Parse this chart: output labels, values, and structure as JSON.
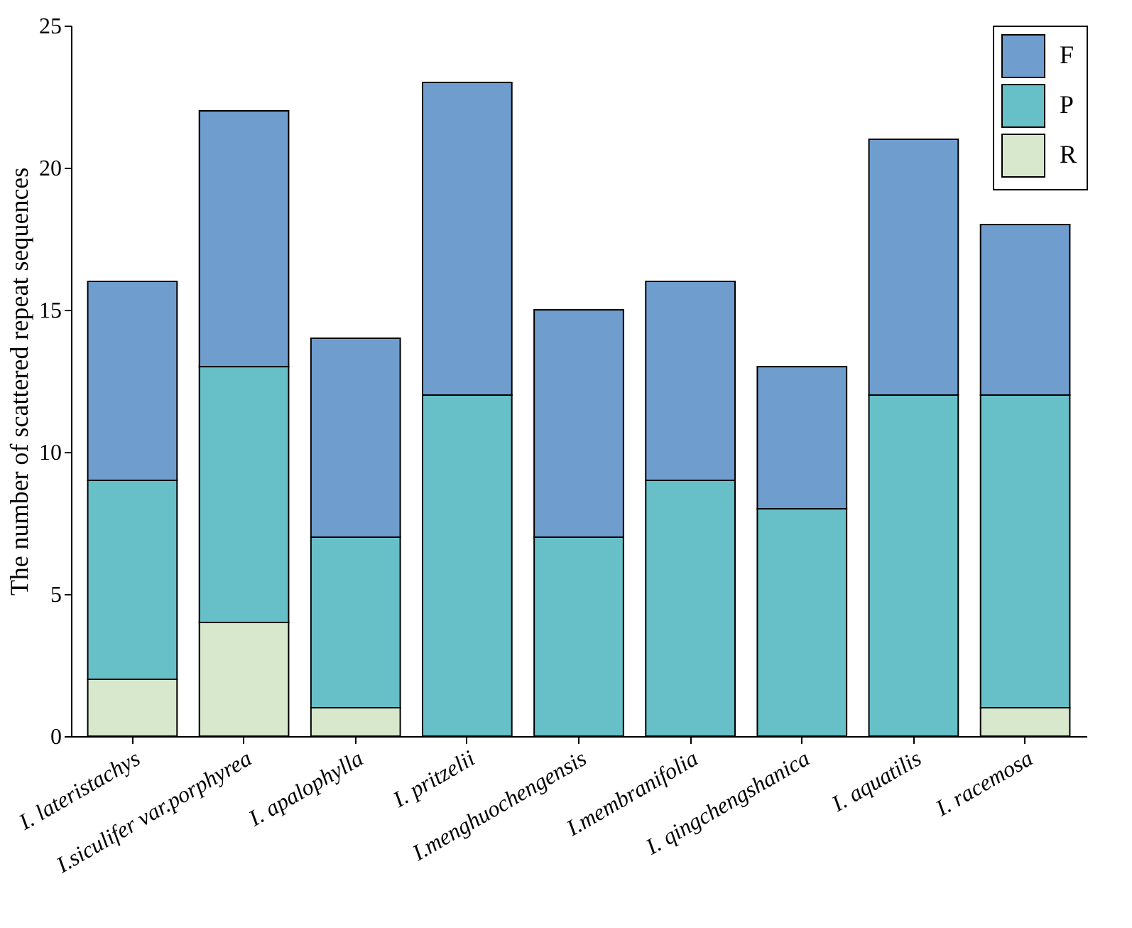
{
  "chart_data": {
    "type": "bar",
    "stacked": true,
    "ylabel": "The number of scattered repeat sequences",
    "categories": [
      "I. lateristachys",
      "I.siculifer var.porphyrea",
      "I. apalophylla",
      "I. pritzelii",
      "I.menghuochengensis",
      "I.membranifolia",
      "I. qingchengshanica",
      "I. aquatilis",
      "I. racemosa"
    ],
    "series": [
      {
        "name": "R",
        "color": "#d7e8cc",
        "values": [
          2,
          4,
          1,
          0,
          0,
          0,
          0,
          0,
          1
        ]
      },
      {
        "name": "P",
        "color": "#67c0c8",
        "values": [
          7,
          9,
          6,
          12,
          7,
          9,
          8,
          12,
          11
        ]
      },
      {
        "name": "F",
        "color": "#6f9dce",
        "values": [
          7,
          9,
          7,
          11,
          8,
          7,
          5,
          9,
          6
        ]
      }
    ],
    "ylim": [
      0,
      25
    ],
    "yticks": [
      0,
      5,
      10,
      15,
      20,
      25
    ],
    "grid": false,
    "legend": "top right"
  }
}
